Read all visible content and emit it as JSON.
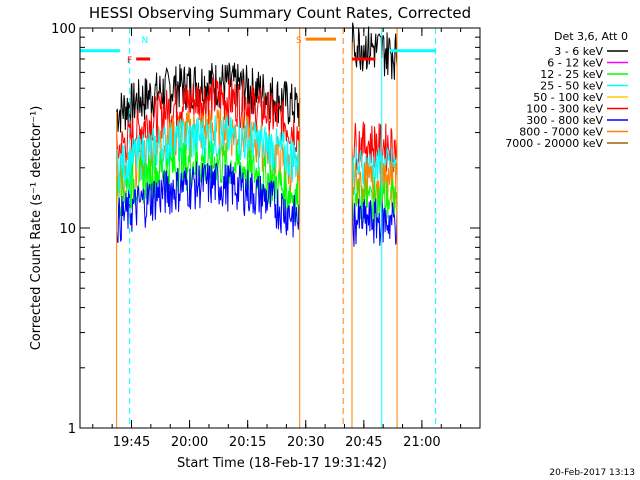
{
  "chart_data": {
    "type": "line",
    "title": "HESSI Observing Summary Count Rates, Corrected",
    "xlabel": "Start Time (18-Feb-17 19:31:42)",
    "ylabel": "Corrected Count Rate (s⁻¹ detector⁻¹)",
    "footer_date": "20-Feb-2017 13:13",
    "legend_title": "Det 3,6, Att 0",
    "y_scale": "log",
    "ylim": [
      1,
      100
    ],
    "y_ticks": [
      {
        "value": 1,
        "label": "1"
      },
      {
        "value": 10,
        "label": "10"
      },
      {
        "value": 100,
        "label": "100"
      }
    ],
    "x_ticks": [
      {
        "value": 19.75,
        "label": "19:45"
      },
      {
        "value": 20.0,
        "label": "20:00"
      },
      {
        "value": 20.25,
        "label": "20:15"
      },
      {
        "value": 20.5,
        "label": "20:30"
      },
      {
        "value": 20.75,
        "label": "20:45"
      },
      {
        "value": 21.0,
        "label": "21:00"
      }
    ],
    "xlim": [
      19.5283,
      21.25
    ],
    "series": [
      {
        "name": "3 - 6 keV",
        "color": "#000000"
      },
      {
        "name": "6 - 12 keV",
        "color": "#ff00ff"
      },
      {
        "name": "12 - 25 keV",
        "color": "#00ff00"
      },
      {
        "name": "25 - 50 keV",
        "color": "#00ffff"
      },
      {
        "name": "50 - 100 keV",
        "color": "#ffcc00"
      },
      {
        "name": "100 - 300 keV",
        "color": "#ff0000"
      },
      {
        "name": "300 - 800 keV",
        "color": "#0000ff"
      },
      {
        "name": "800 - 7000 keV",
        "color": "#ff8000"
      },
      {
        "name": "7000 - 20000 keV",
        "color": "#996600"
      }
    ],
    "segments": [
      {
        "x_start": 19.686,
        "x_end": 20.474,
        "levels": [
          {
            "series": "3 - 6 keV",
            "start": 38,
            "peak": 55,
            "end": 40
          },
          {
            "series": "100 - 300 keV",
            "start": 24,
            "peak": 48,
            "end": 30
          },
          {
            "series": "800 - 7000 keV",
            "start": 17,
            "peak": 32,
            "end": 18
          },
          {
            "series": "25 - 50 keV",
            "start": 20,
            "peak": 30,
            "end": 22
          },
          {
            "series": "12 - 25 keV",
            "start": 15,
            "peak": 22,
            "end": 14
          },
          {
            "series": "300 - 800 keV",
            "start": 11,
            "peak": 17,
            "end": 11
          }
        ]
      },
      {
        "x_start": 20.699,
        "x_end": 20.893,
        "levels": [
          {
            "series": "3 - 6 keV",
            "start": 85,
            "peak": 85,
            "end": 75
          },
          {
            "series": "100 - 300 keV",
            "start": 27,
            "peak": 27,
            "end": 26
          },
          {
            "series": "800 - 7000 keV",
            "start": 17,
            "peak": 17,
            "end": 17
          },
          {
            "series": "25 - 50 keV",
            "start": 20,
            "peak": 20,
            "end": 20
          },
          {
            "series": "12 - 25 keV",
            "start": 14,
            "peak": 14,
            "end": 14
          },
          {
            "series": "300 - 800 keV",
            "start": 11,
            "peak": 11,
            "end": 11
          }
        ]
      }
    ],
    "flags": [
      {
        "label": "N",
        "color": "#00ffff",
        "x_start": 19.75,
        "x_end": 19.75,
        "y": 88
      },
      {
        "label": "F",
        "color": "#ff0000",
        "x_start": 19.77,
        "x_end": 19.83,
        "y": 70
      },
      {
        "label": "S",
        "color": "#ff8000",
        "x_start": 20.5,
        "x_end": 20.63,
        "y": 88
      },
      {
        "label": "",
        "color": "#00ffff",
        "x_start": 19.528,
        "x_end": 19.7,
        "y": 77
      },
      {
        "label": "",
        "color": "#00ffff",
        "x_start": 20.86,
        "x_end": 21.06,
        "y": 77
      },
      {
        "label": "",
        "color": "#ff0000",
        "x_start": 20.7,
        "x_end": 20.8,
        "y": 70
      }
    ],
    "vlines": [
      {
        "x": 19.528,
        "color": "#00ffff",
        "style": "solid"
      },
      {
        "x": 19.742,
        "color": "#00ffff",
        "style": "dashed"
      },
      {
        "x": 20.474,
        "color": "#ff8000",
        "style": "solid"
      },
      {
        "x": 20.661,
        "color": "#ff8000",
        "style": "dashed"
      },
      {
        "x": 20.827,
        "color": "#00ffff",
        "style": "solid"
      },
      {
        "x": 20.893,
        "color": "#ff8000",
        "style": "solid"
      },
      {
        "x": 21.059,
        "color": "#00ffff",
        "style": "dashed"
      }
    ]
  }
}
